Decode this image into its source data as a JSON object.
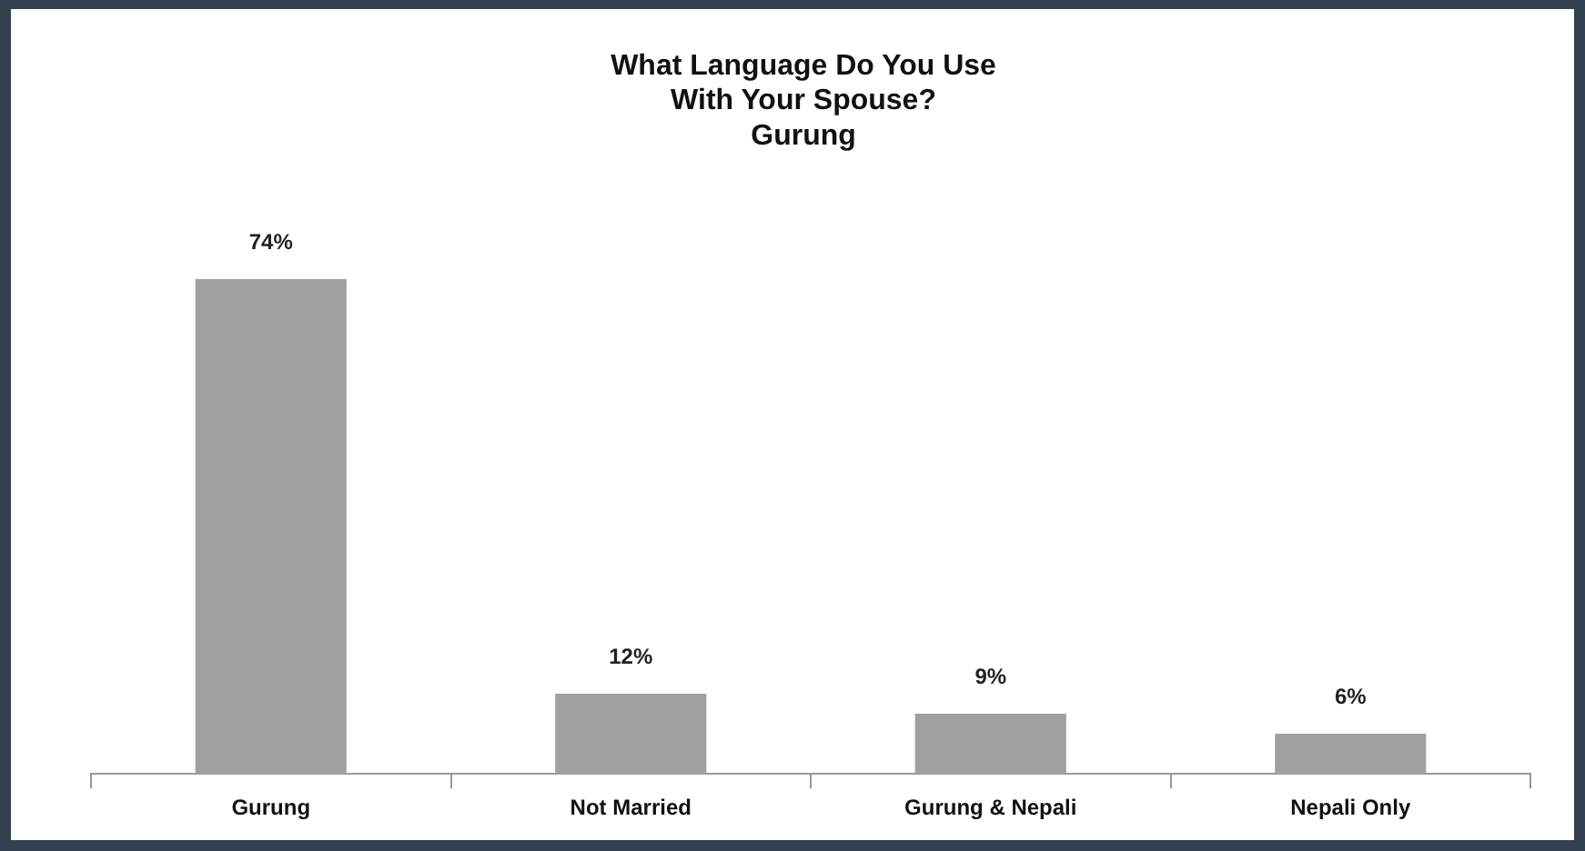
{
  "chart_data": {
    "type": "bar",
    "title": "What Language Do You Use\nWith Your Spouse?\nGurung",
    "categories": [
      "Gurung",
      "Not Married",
      "Gurung & Nepali",
      "Nepali Only"
    ],
    "values": [
      74,
      12,
      9,
      6
    ],
    "color": "#a0a0a0",
    "data_labels": true,
    "value_labels": [
      "74%",
      "12%",
      "9%",
      "6%"
    ],
    "relative": false
  }
}
